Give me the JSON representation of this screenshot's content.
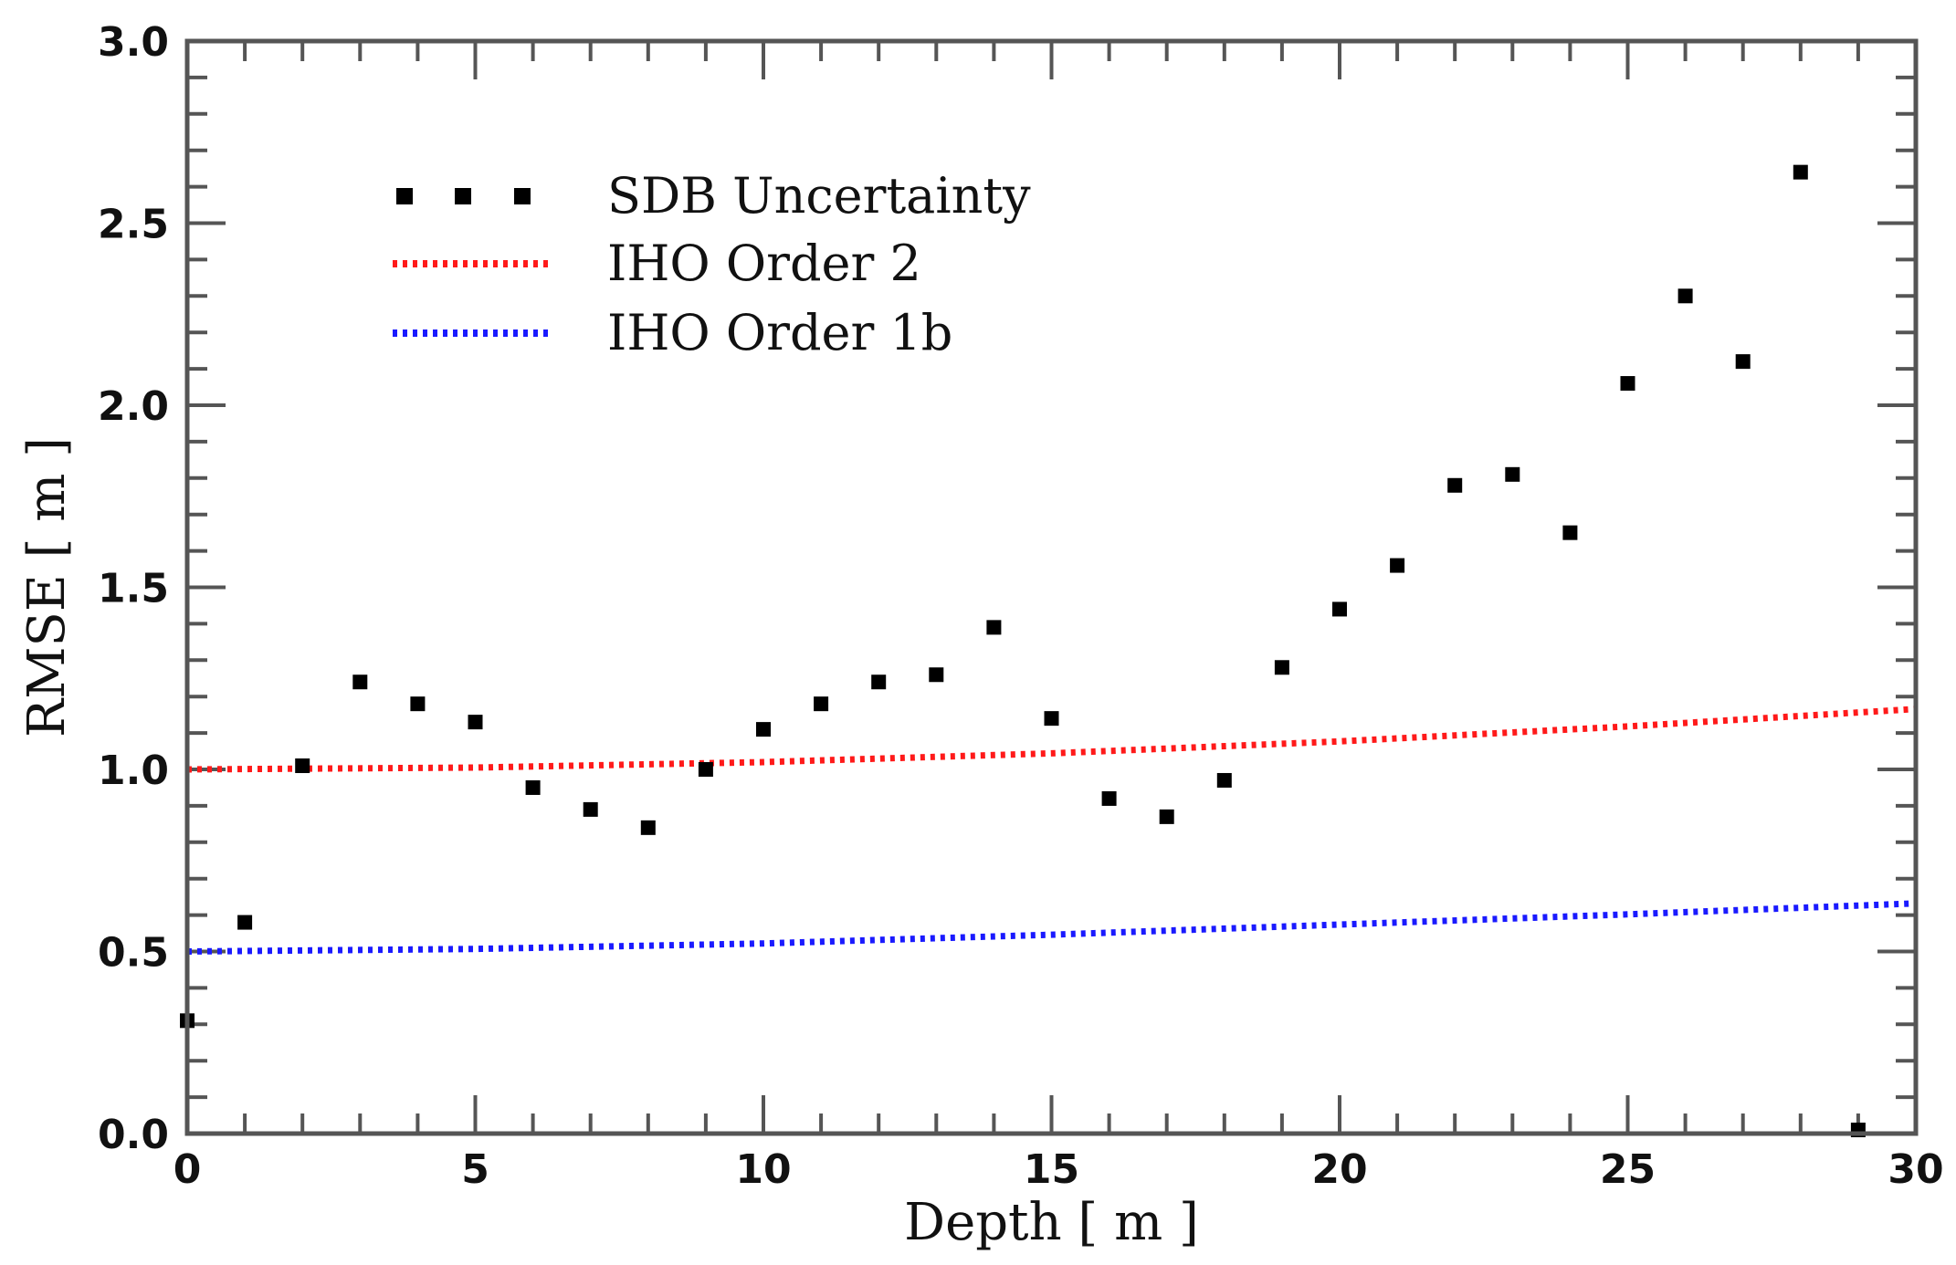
{
  "chart_data": {
    "type": "scatter",
    "title": "",
    "xlabel": "Depth [ m ]",
    "ylabel": "RMSE [ m ]",
    "xlim": [
      0,
      30
    ],
    "ylim": [
      0,
      3.0
    ],
    "xticks": [
      0,
      5,
      10,
      15,
      20,
      25,
      30
    ],
    "xtick_labels": [
      "0",
      "5",
      "10",
      "15",
      "20",
      "25",
      "30"
    ],
    "yticks": [
      0.0,
      0.5,
      1.0,
      1.5,
      2.0,
      2.5,
      3.0
    ],
    "ytick_labels": [
      "0.0",
      "0.5",
      "1.0",
      "1.5",
      "2.0",
      "2.5",
      "3.0"
    ],
    "x_minor_step": 1,
    "y_minor_step": 0.1,
    "legend_position": "top-left",
    "series": [
      {
        "name": "SDB Uncertainty",
        "style": "points",
        "color": "#000000",
        "x": [
          0,
          1,
          2,
          3,
          4,
          5,
          6,
          7,
          8,
          9,
          10,
          11,
          12,
          13,
          14,
          15,
          16,
          17,
          18,
          19,
          20,
          21,
          22,
          23,
          24,
          25,
          26,
          27,
          28,
          29
        ],
        "y": [
          0.31,
          0.58,
          1.01,
          1.24,
          1.18,
          1.13,
          0.95,
          0.89,
          0.84,
          1.0,
          1.11,
          1.18,
          1.24,
          1.26,
          1.39,
          1.14,
          0.92,
          0.87,
          0.97,
          1.28,
          1.44,
          1.56,
          1.78,
          1.81,
          1.65,
          2.06,
          2.3,
          2.12,
          2.64,
          0.01
        ]
      },
      {
        "name": "IHO Order 2",
        "style": "dotted-line",
        "color": "#ff1a1a",
        "x": [
          0,
          5,
          10,
          15,
          20,
          25,
          30
        ],
        "y": [
          1.0,
          1.005,
          1.02,
          1.044,
          1.077,
          1.118,
          1.166
        ]
      },
      {
        "name": "IHO Order 1b",
        "style": "dotted-line",
        "color": "#1a1aff",
        "x": [
          0,
          5,
          10,
          15,
          20,
          25,
          30
        ],
        "y": [
          0.5,
          0.507,
          0.522,
          0.546,
          0.574,
          0.602,
          0.632
        ]
      }
    ]
  }
}
